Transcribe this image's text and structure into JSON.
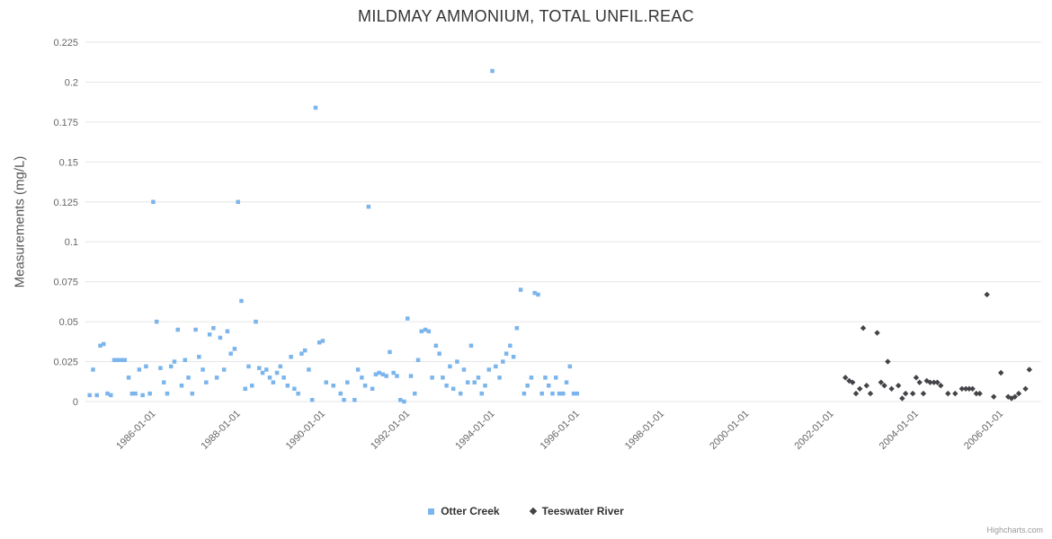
{
  "credits": "Highcharts.com",
  "chart_data": {
    "type": "scatter",
    "title": "MILDMAY AMMONIUM, TOTAL UNFIL.REAC",
    "xlabel": "",
    "ylabel": "Measurements (mg/L)",
    "x_unit": "decimal_year",
    "xlim": [
      1984.4,
      2006.95
    ],
    "ylim": [
      0,
      0.225
    ],
    "grid": "horizontal",
    "grid_color": "#e6e6e6",
    "label_color": "#666666",
    "legend_position": "bottom-center",
    "y_ticks": [
      0,
      0.025,
      0.05,
      0.075,
      0.1,
      0.125,
      0.15,
      0.175,
      0.2,
      0.225
    ],
    "y_tick_labels": [
      "0",
      "0.025",
      "0.05",
      "0.075",
      "0.1",
      "0.125",
      "0.15",
      "0.175",
      "0.2",
      "0.225"
    ],
    "x_ticks": [
      1986,
      1988,
      1990,
      1992,
      1994,
      1996,
      1998,
      2000,
      2002,
      2004,
      2006
    ],
    "x_tick_labels": [
      "1986-01-01",
      "1988-01-01",
      "1990-01-01",
      "1992-01-01",
      "1994-01-01",
      "1996-01-01",
      "1998-01-01",
      "2000-01-01",
      "2002-01-01",
      "2004-01-01",
      "2006-01-01"
    ],
    "series": [
      {
        "name": "Otter Creek",
        "marker": "square",
        "color": "#7cb5ec",
        "points": [
          [
            1984.5,
            0.004
          ],
          [
            1984.58,
            0.02
          ],
          [
            1984.67,
            0.004
          ],
          [
            1984.75,
            0.035
          ],
          [
            1984.83,
            0.036
          ],
          [
            1984.92,
            0.005
          ],
          [
            1985.0,
            0.004
          ],
          [
            1985.08,
            0.026
          ],
          [
            1985.17,
            0.026
          ],
          [
            1985.25,
            0.026
          ],
          [
            1985.33,
            0.026
          ],
          [
            1985.42,
            0.015
          ],
          [
            1985.5,
            0.005
          ],
          [
            1985.58,
            0.005
          ],
          [
            1985.67,
            0.02
          ],
          [
            1985.75,
            0.004
          ],
          [
            1985.83,
            0.022
          ],
          [
            1985.92,
            0.005
          ],
          [
            1986.0,
            0.125
          ],
          [
            1986.08,
            0.05
          ],
          [
            1986.17,
            0.021
          ],
          [
            1986.25,
            0.012
          ],
          [
            1986.33,
            0.005
          ],
          [
            1986.42,
            0.022
          ],
          [
            1986.5,
            0.025
          ],
          [
            1986.58,
            0.045
          ],
          [
            1986.67,
            0.01
          ],
          [
            1986.75,
            0.026
          ],
          [
            1986.83,
            0.015
          ],
          [
            1986.92,
            0.005
          ],
          [
            1987.0,
            0.045
          ],
          [
            1987.08,
            0.028
          ],
          [
            1987.17,
            0.02
          ],
          [
            1987.25,
            0.012
          ],
          [
            1987.33,
            0.042
          ],
          [
            1987.42,
            0.046
          ],
          [
            1987.5,
            0.015
          ],
          [
            1987.58,
            0.04
          ],
          [
            1987.67,
            0.02
          ],
          [
            1987.75,
            0.044
          ],
          [
            1987.83,
            0.03
          ],
          [
            1987.92,
            0.033
          ],
          [
            1988.0,
            0.125
          ],
          [
            1988.08,
            0.063
          ],
          [
            1988.17,
            0.008
          ],
          [
            1988.25,
            0.022
          ],
          [
            1988.33,
            0.01
          ],
          [
            1988.42,
            0.05
          ],
          [
            1988.5,
            0.021
          ],
          [
            1988.58,
            0.018
          ],
          [
            1988.67,
            0.02
          ],
          [
            1988.75,
            0.015
          ],
          [
            1988.83,
            0.012
          ],
          [
            1988.92,
            0.018
          ],
          [
            1989.0,
            0.022
          ],
          [
            1989.08,
            0.015
          ],
          [
            1989.17,
            0.01
          ],
          [
            1989.25,
            0.028
          ],
          [
            1989.33,
            0.008
          ],
          [
            1989.42,
            0.005
          ],
          [
            1989.5,
            0.03
          ],
          [
            1989.58,
            0.032
          ],
          [
            1989.67,
            0.02
          ],
          [
            1989.75,
            0.001
          ],
          [
            1989.83,
            0.184
          ],
          [
            1989.92,
            0.037
          ],
          [
            1990.0,
            0.038
          ],
          [
            1990.08,
            0.012
          ],
          [
            1990.25,
            0.01
          ],
          [
            1990.42,
            0.005
          ],
          [
            1990.5,
            0.001
          ],
          [
            1990.58,
            0.012
          ],
          [
            1990.75,
            0.001
          ],
          [
            1990.83,
            0.02
          ],
          [
            1990.92,
            0.015
          ],
          [
            1991.0,
            0.01
          ],
          [
            1991.08,
            0.122
          ],
          [
            1991.17,
            0.008
          ],
          [
            1991.25,
            0.017
          ],
          [
            1991.33,
            0.018
          ],
          [
            1991.42,
            0.017
          ],
          [
            1991.5,
            0.016
          ],
          [
            1991.58,
            0.031
          ],
          [
            1991.67,
            0.018
          ],
          [
            1991.75,
            0.016
          ],
          [
            1991.83,
            0.001
          ],
          [
            1991.92,
            0.0
          ],
          [
            1992.0,
            0.052
          ],
          [
            1992.08,
            0.016
          ],
          [
            1992.17,
            0.005
          ],
          [
            1992.25,
            0.026
          ],
          [
            1992.33,
            0.044
          ],
          [
            1992.42,
            0.045
          ],
          [
            1992.5,
            0.044
          ],
          [
            1992.58,
            0.015
          ],
          [
            1992.67,
            0.035
          ],
          [
            1992.75,
            0.03
          ],
          [
            1992.83,
            0.015
          ],
          [
            1992.92,
            0.01
          ],
          [
            1993.0,
            0.022
          ],
          [
            1993.08,
            0.008
          ],
          [
            1993.17,
            0.025
          ],
          [
            1993.25,
            0.005
          ],
          [
            1993.33,
            0.02
          ],
          [
            1993.42,
            0.012
          ],
          [
            1993.5,
            0.035
          ],
          [
            1993.58,
            0.012
          ],
          [
            1993.67,
            0.015
          ],
          [
            1993.75,
            0.005
          ],
          [
            1993.83,
            0.01
          ],
          [
            1993.92,
            0.02
          ],
          [
            1994.0,
            0.207
          ],
          [
            1994.08,
            0.022
          ],
          [
            1994.17,
            0.015
          ],
          [
            1994.25,
            0.025
          ],
          [
            1994.33,
            0.03
          ],
          [
            1994.42,
            0.035
          ],
          [
            1994.5,
            0.028
          ],
          [
            1994.58,
            0.046
          ],
          [
            1994.67,
            0.07
          ],
          [
            1994.75,
            0.005
          ],
          [
            1994.83,
            0.01
          ],
          [
            1994.92,
            0.015
          ],
          [
            1995.0,
            0.068
          ],
          [
            1995.08,
            0.067
          ],
          [
            1995.17,
            0.005
          ],
          [
            1995.25,
            0.015
          ],
          [
            1995.33,
            0.01
          ],
          [
            1995.42,
            0.005
          ],
          [
            1995.5,
            0.015
          ],
          [
            1995.58,
            0.005
          ],
          [
            1995.67,
            0.005
          ],
          [
            1995.75,
            0.012
          ],
          [
            1995.83,
            0.022
          ],
          [
            1995.92,
            0.005
          ],
          [
            1996.0,
            0.005
          ]
        ]
      },
      {
        "name": "Teeswater River",
        "marker": "diamond",
        "color": "#434348",
        "points": [
          [
            2002.33,
            0.015
          ],
          [
            2002.42,
            0.013
          ],
          [
            2002.5,
            0.012
          ],
          [
            2002.58,
            0.005
          ],
          [
            2002.67,
            0.008
          ],
          [
            2002.75,
            0.046
          ],
          [
            2002.83,
            0.01
          ],
          [
            2002.92,
            0.005
          ],
          [
            2003.08,
            0.043
          ],
          [
            2003.17,
            0.012
          ],
          [
            2003.25,
            0.01
          ],
          [
            2003.33,
            0.025
          ],
          [
            2003.42,
            0.008
          ],
          [
            2003.58,
            0.01
          ],
          [
            2003.67,
            0.002
          ],
          [
            2003.75,
            0.005
          ],
          [
            2003.92,
            0.005
          ],
          [
            2004.0,
            0.015
          ],
          [
            2004.08,
            0.012
          ],
          [
            2004.17,
            0.005
          ],
          [
            2004.25,
            0.013
          ],
          [
            2004.33,
            0.012
          ],
          [
            2004.42,
            0.012
          ],
          [
            2004.5,
            0.012
          ],
          [
            2004.58,
            0.01
          ],
          [
            2004.75,
            0.005
          ],
          [
            2004.92,
            0.005
          ],
          [
            2005.08,
            0.008
          ],
          [
            2005.17,
            0.008
          ],
          [
            2005.25,
            0.008
          ],
          [
            2005.33,
            0.008
          ],
          [
            2005.42,
            0.005
          ],
          [
            2005.5,
            0.005
          ],
          [
            2005.67,
            0.067
          ],
          [
            2005.83,
            0.003
          ],
          [
            2006.0,
            0.018
          ],
          [
            2006.17,
            0.003
          ],
          [
            2006.25,
            0.002
          ],
          [
            2006.33,
            0.003
          ],
          [
            2006.42,
            0.005
          ],
          [
            2006.58,
            0.008
          ],
          [
            2006.67,
            0.02
          ]
        ]
      }
    ]
  }
}
